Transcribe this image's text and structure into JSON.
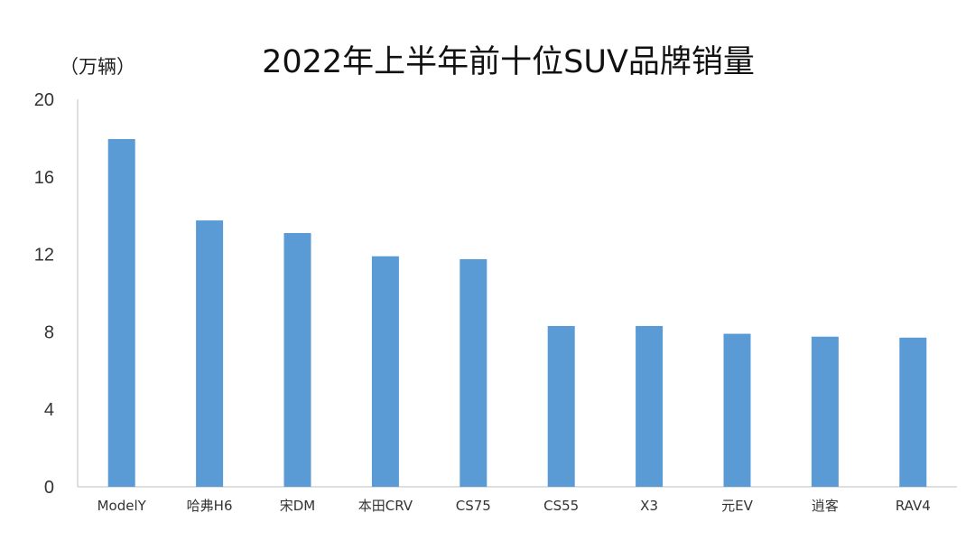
{
  "chart_data": {
    "type": "bar",
    "title": "2022年上半年前十位SUV品牌销量",
    "ylabel": "（万辆）",
    "xlabel": "",
    "categories": [
      "ModelY",
      "哈弗H6",
      "宋DM",
      "本田CRV",
      "CS75",
      "CS55",
      "X3",
      "元EV",
      "逍客",
      "RAV4"
    ],
    "values": [
      17.95,
      13.75,
      13.1,
      11.9,
      11.75,
      8.3,
      8.3,
      7.9,
      7.75,
      7.7
    ],
    "ylim": [
      0,
      20
    ],
    "yticks": [
      0,
      4,
      8,
      12,
      16,
      20
    ],
    "grid": false,
    "legend": "none",
    "bar_color": "#5B9BD5"
  }
}
